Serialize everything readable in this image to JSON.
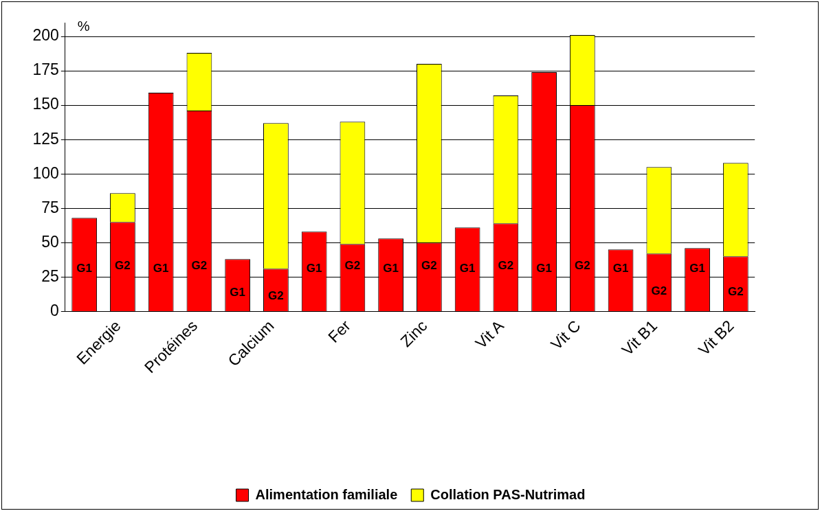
{
  "chart_data": {
    "type": "bar",
    "stacked": true,
    "ylabel": "%",
    "categories": [
      "G1",
      "G2",
      "G1",
      "G2",
      "G1",
      "G2",
      "G1",
      "G2",
      "G1",
      "G2",
      "G1",
      "G2",
      "G1",
      "G2",
      "G1",
      "G2",
      "G1",
      "G2"
    ],
    "annotations": [
      "Energie",
      "Protéines",
      "Calcium",
      "Fer",
      "Zinc",
      "Vit A",
      "Vit C",
      "Vit B1",
      "Vit B2"
    ],
    "series": [
      {
        "name": "Alimentation familiale",
        "color": "#ff0000",
        "values": [
          68,
          65,
          159,
          146,
          38,
          31,
          58,
          49,
          53,
          50,
          61,
          64,
          174,
          150,
          45,
          42,
          46,
          40
        ]
      },
      {
        "name": "Collation PAS-Nutrimad",
        "color": "#ffff00",
        "values": [
          null,
          21,
          null,
          42,
          null,
          106,
          null,
          89,
          null,
          130,
          null,
          93,
          null,
          51,
          null,
          63,
          null,
          68
        ]
      }
    ],
    "ylim": [
      0,
      210
    ],
    "yticks": [
      0,
      25,
      50,
      75,
      100,
      125,
      150,
      175,
      200
    ],
    "grid": "y",
    "legend": "bottom"
  }
}
